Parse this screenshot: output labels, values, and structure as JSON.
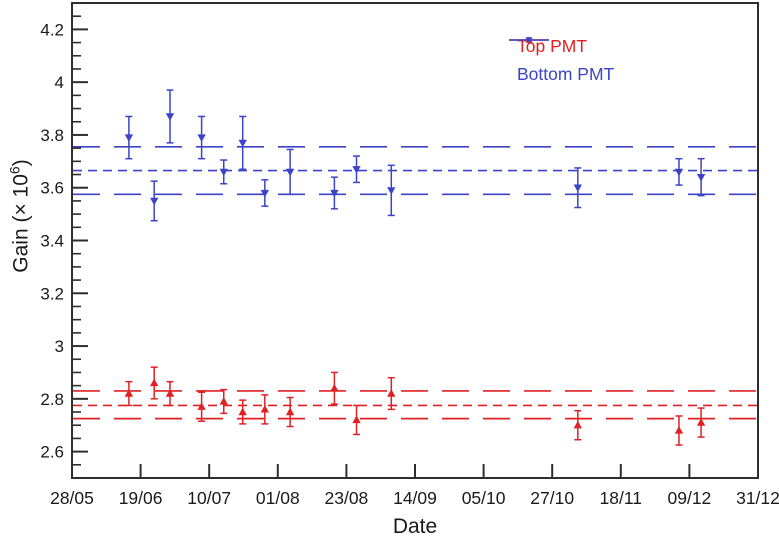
{
  "axes": {
    "xlabel": "Date",
    "ylabel": "Gain (× 10⁶)",
    "ylabel_parts": {
      "pre": "Gain (× 10",
      "sup": "6",
      "post": ")"
    },
    "frame_color": "#2e2e2e",
    "text_color": "#1a1a1a"
  },
  "legend": {
    "position": "top-right",
    "items": [
      {
        "label": "Top PMT",
        "marker": "triangle-up"
      },
      {
        "label": "Bottom PMT",
        "marker": "triangle-down"
      }
    ]
  },
  "chart_data": {
    "type": "scatter",
    "title": "",
    "xlabel": "Date",
    "ylabel": "Gain (× 10⁶)",
    "grid": false,
    "x_axis": {
      "kind": "date",
      "start_label": "28/05",
      "end_label": "31/12",
      "span_days": 217,
      "tick_labels": [
        "28/05",
        "19/06",
        "10/07",
        "01/08",
        "23/08",
        "14/09",
        "05/10",
        "27/10",
        "18/11",
        "09/12",
        "31/12"
      ]
    },
    "y_axis": {
      "range": [
        2.5,
        4.3
      ],
      "major_tick_step": 0.2,
      "minor_tick_step": 0.05,
      "tick_labels": [
        "2.6",
        "2.8",
        "3",
        "3.2",
        "3.4",
        "3.6",
        "3.8",
        "4",
        "4.2"
      ]
    },
    "series": [
      {
        "name": "Top PMT",
        "color": "#e02023",
        "marker": "triangle-up",
        "dates": [
          "15/06",
          "23/06",
          "28/06",
          "08/07",
          "15/07",
          "21/07",
          "28/07",
          "05/08",
          "19/08",
          "26/08",
          "06/09",
          "04/11",
          "06/12",
          "13/12"
        ],
        "days": [
          18,
          26,
          31,
          41,
          48,
          54,
          61,
          69,
          83,
          90,
          101,
          160,
          192,
          199
        ],
        "gain": [
          2.82,
          2.86,
          2.82,
          2.77,
          2.79,
          2.75,
          2.76,
          2.75,
          2.84,
          2.72,
          2.82,
          2.7,
          2.68,
          2.71
        ],
        "err": [
          0.045,
          0.06,
          0.045,
          0.055,
          0.045,
          0.045,
          0.055,
          0.055,
          0.06,
          0.055,
          0.06,
          0.055,
          0.055,
          0.055
        ],
        "mean_line": 2.775,
        "mean_line_style": "short-dash",
        "band_lines": [
          2.725,
          2.83
        ],
        "band_line_style": "long-dash"
      },
      {
        "name": "Bottom PMT",
        "color": "#3b44c8",
        "marker": "triangle-down",
        "dates": [
          "15/06",
          "23/06",
          "28/06",
          "08/07",
          "15/07",
          "21/07",
          "28/07",
          "05/08",
          "19/08",
          "26/08",
          "06/09",
          "04/11",
          "06/12",
          "13/12"
        ],
        "days": [
          18,
          26,
          31,
          41,
          48,
          54,
          61,
          69,
          83,
          90,
          101,
          160,
          192,
          199
        ],
        "gain": [
          3.79,
          3.55,
          3.87,
          3.79,
          3.66,
          3.77,
          3.58,
          3.66,
          3.58,
          3.67,
          3.59,
          3.6,
          3.66,
          3.64
        ],
        "err": [
          0.08,
          0.075,
          0.1,
          0.08,
          0.045,
          0.1,
          0.05,
          0.085,
          0.06,
          0.05,
          0.095,
          0.075,
          0.05,
          0.07
        ],
        "mean_line": 3.665,
        "mean_line_style": "short-dash",
        "band_lines": [
          3.575,
          3.755
        ],
        "band_line_style": "long-dash"
      }
    ]
  }
}
